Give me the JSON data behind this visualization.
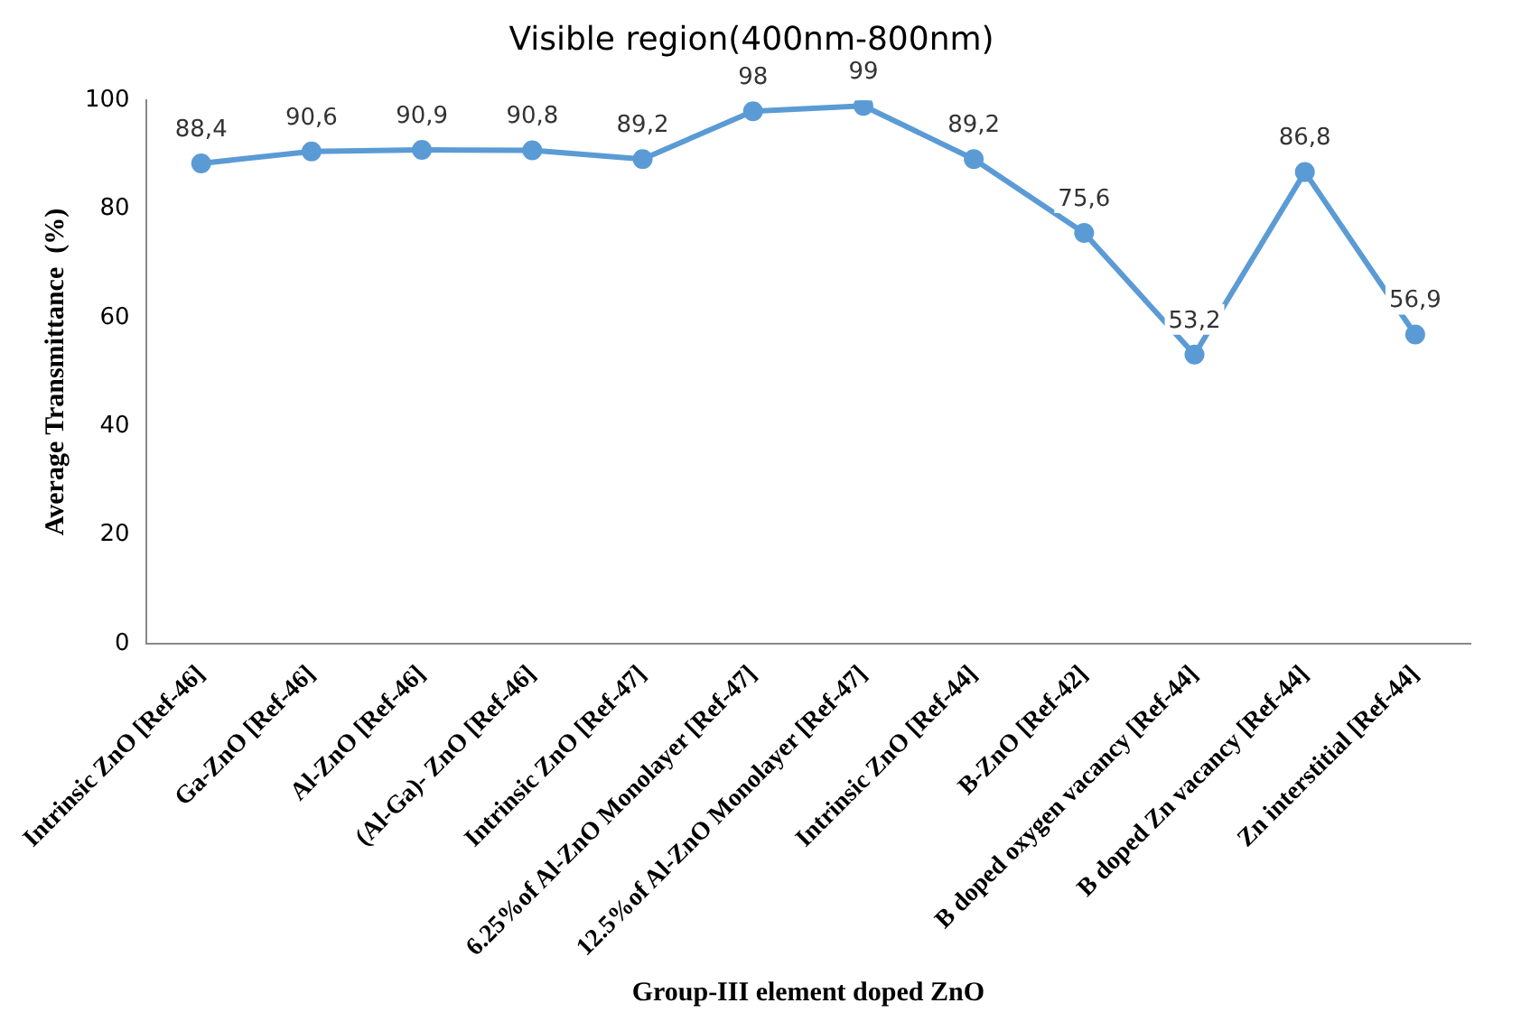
{
  "chart_data": {
    "type": "line",
    "title": "Visible region(400nm-800nm)",
    "xlabel": "Group-III element doped ZnO",
    "ylabel": "Average Transmittance  (%)",
    "categories": [
      "Intrinsic ZnO [Ref-46]",
      "Ga-ZnO [Ref-46]",
      "Al-ZnO [Ref-46]",
      "(Al-Ga)- ZnO [Ref-46]",
      "Intrinsic ZnO [Ref-47]",
      "6.25%of Al-ZnO Monolayer [Ref-47]",
      "12.5%of Al-ZnO Monolayer [Ref-47]",
      "Intrinsic ZnO [Ref-44]",
      "B-ZnO [Ref-42]",
      "B doped oxygen vacancy [Ref-44]",
      "B doped Zn vacancy [Ref-44]",
      "Zn interstitial [Ref-44]"
    ],
    "series": [
      {
        "color": "#5b9bd5",
        "values": [
          88.4,
          90.6,
          90.9,
          90.8,
          89.2,
          98,
          99,
          89.2,
          75.6,
          53.2,
          86.8,
          56.9
        ],
        "value_labels": [
          "88,4",
          "90,6",
          "90,9",
          "90,8",
          "89,2",
          "98",
          "99",
          "89,2",
          "75,6",
          "53,2",
          "86,8",
          "56,9"
        ]
      }
    ],
    "ylim": [
      0,
      100
    ],
    "yticks": [
      0,
      20,
      40,
      60,
      80,
      100
    ],
    "grid": false,
    "legend": false,
    "marker": "circle",
    "line_style": "solid"
  }
}
